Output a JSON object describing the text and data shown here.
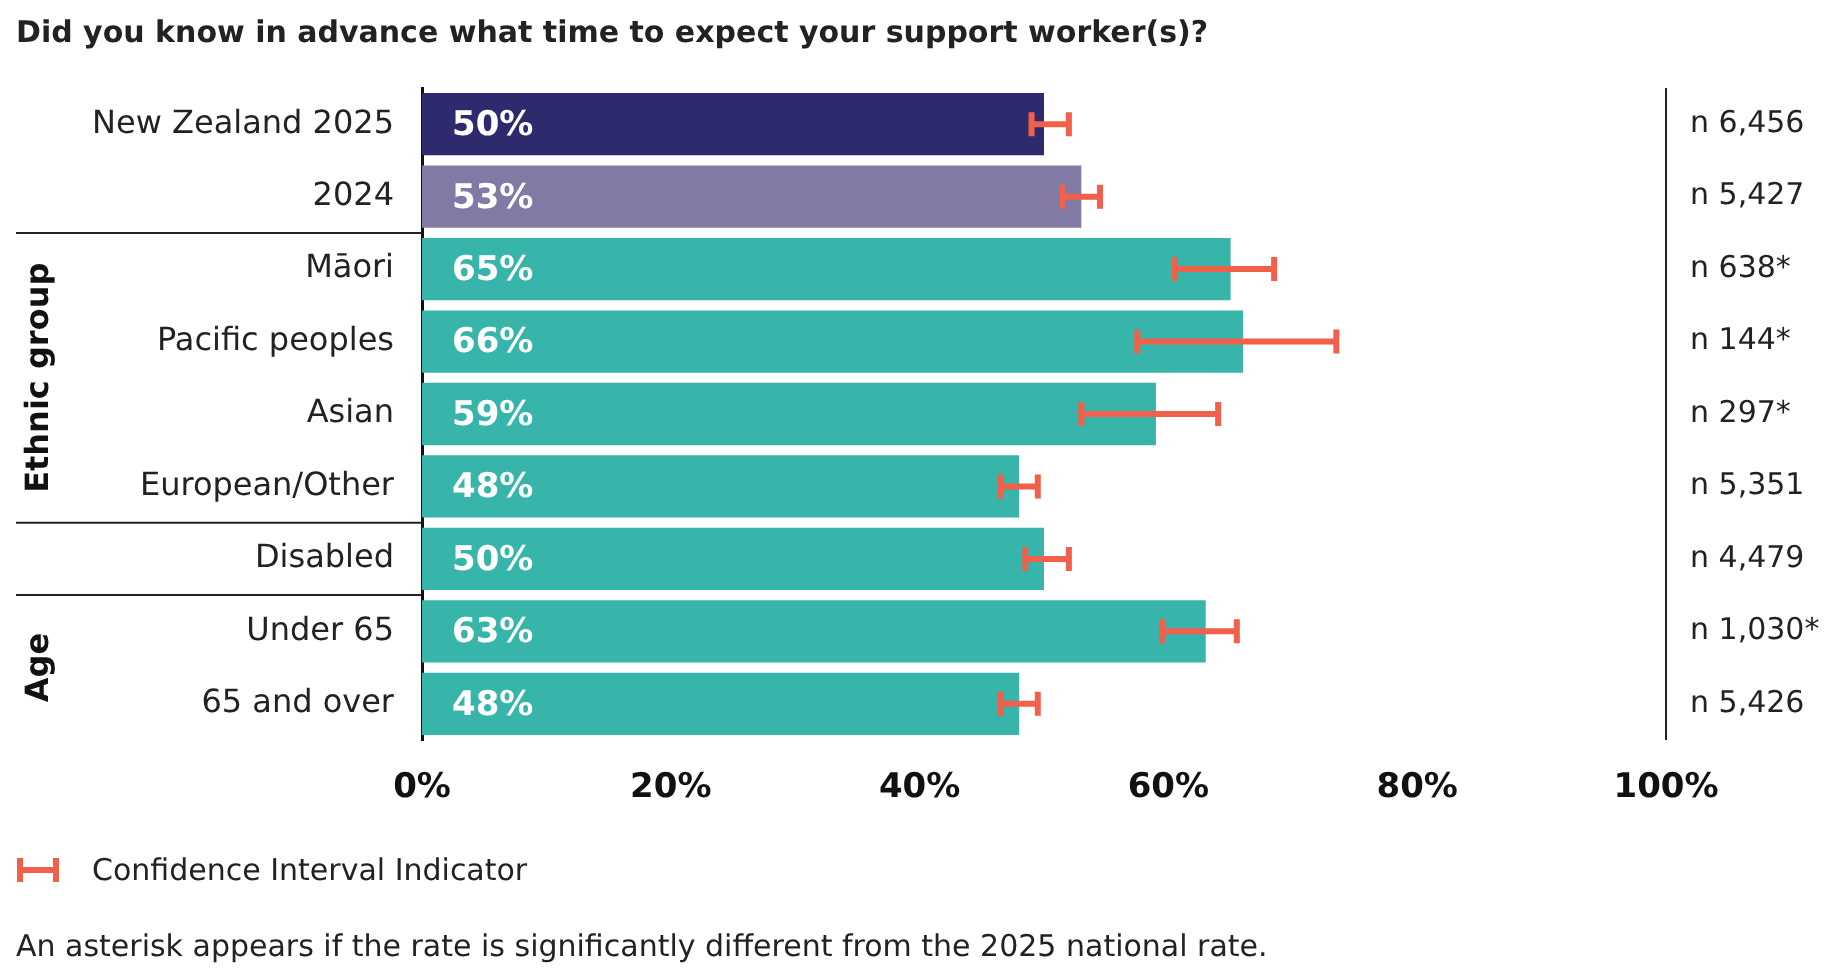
{
  "chart_data": {
    "type": "bar",
    "orientation": "horizontal",
    "title": "Did you know in advance what time to expect your support worker(s)?",
    "categories": [
      "New Zealand 2025",
      "2024",
      "Māori",
      "Pacific peoples",
      "Asian",
      "European/Other",
      "Disabled",
      "Under 65",
      "65 and over"
    ],
    "values": [
      50,
      53,
      65,
      66,
      59,
      48,
      50,
      63,
      48
    ],
    "value_labels": [
      "50%",
      "53%",
      "65%",
      "66%",
      "59%",
      "48%",
      "50%",
      "63%",
      "48%"
    ],
    "colors": [
      "#2e2a6e",
      "#8279a5",
      "#37b5aa",
      "#37b5aa",
      "#37b5aa",
      "#37b5aa",
      "#37b5aa",
      "#37b5aa",
      "#37b5aa"
    ],
    "errors": [
      [
        49,
        52
      ],
      [
        51.5,
        54.5
      ],
      [
        60.5,
        68.5
      ],
      [
        57.5,
        73.5
      ],
      [
        53,
        64
      ],
      [
        46.5,
        49.5
      ],
      [
        48.5,
        52
      ],
      [
        59.5,
        65.5
      ],
      [
        46.5,
        49.5
      ]
    ],
    "xlim": [
      0,
      100
    ],
    "xticks": [
      {
        "value": 0,
        "label": "0%"
      },
      {
        "value": 20,
        "label": "20%"
      },
      {
        "value": 40,
        "label": "40%"
      },
      {
        "value": 60,
        "label": "60%"
      },
      {
        "value": 80,
        "label": "80%"
      },
      {
        "value": 100,
        "label": "100%"
      }
    ],
    "grid": false,
    "legend": false,
    "annotations": [
      "n 6,456",
      "n 5,427",
      "n 638*",
      "n 144*",
      "n 297*",
      "n 5,351",
      "n 4,479",
      "n 1,030*",
      "n 5,426",
      "Ethnic group",
      "Age",
      "Confidence Interval Indicator",
      "An asterisk appears if the rate is significantly different from the 2025 national rate."
    ]
  }
}
